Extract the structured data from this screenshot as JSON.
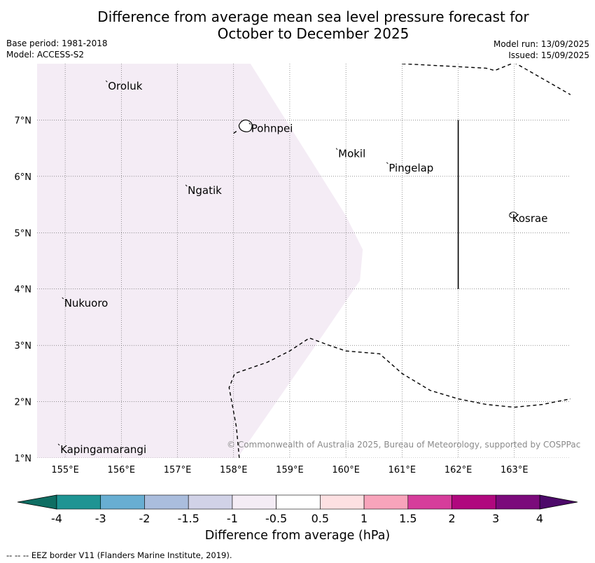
{
  "title_line1": "Difference from average mean sea level pressure forecast for",
  "title_line2": "October to December 2025",
  "base_period": "Base period: 1981-2018",
  "model": "Model: ACCESS-S2",
  "model_run": "Model run: 13/09/2025",
  "issued": "Issued: 15/09/2025",
  "copyright": "© Commonwealth of Australia 2025, Bureau of Meteorology, supported by COSPPac",
  "map": {
    "lon_range": [
      154.5,
      164.0
    ],
    "lat_range": [
      1.0,
      8.0
    ],
    "lon_ticks": [
      "155°E",
      "156°E",
      "157°E",
      "158°E",
      "159°E",
      "160°E",
      "161°E",
      "162°E",
      "163°E"
    ],
    "lat_ticks": [
      "1°N",
      "2°N",
      "3°N",
      "4°N",
      "5°N",
      "6°N",
      "7°N"
    ],
    "gridlines": true,
    "anomaly_region_color": "#f4ecf5",
    "anomaly_region_lonlat": [
      [
        154.5,
        8.0
      ],
      [
        158.3,
        8.0
      ],
      [
        160.0,
        5.3
      ],
      [
        160.3,
        4.7
      ],
      [
        160.25,
        4.15
      ],
      [
        159.6,
        3.2
      ],
      [
        158.0,
        0.9
      ],
      [
        154.5,
        0.9
      ]
    ],
    "places": [
      {
        "name": "Oroluk",
        "lon": 155.75,
        "lat": 7.6
      },
      {
        "name": "Pohnpei",
        "lon": 158.3,
        "lat": 6.85
      },
      {
        "name": "Mokil",
        "lon": 159.85,
        "lat": 6.4
      },
      {
        "name": "Pingelap",
        "lon": 160.75,
        "lat": 6.15
      },
      {
        "name": "Ngatik",
        "lon": 157.17,
        "lat": 5.75
      },
      {
        "name": "Kosrae",
        "lon": 162.95,
        "lat": 5.25
      },
      {
        "name": "Nukuoro",
        "lon": 154.97,
        "lat": 3.75
      },
      {
        "name": "Kapingamarangi",
        "lon": 154.9,
        "lat": 1.15
      }
    ],
    "eez_borders": [
      {
        "style": "dashed",
        "points": [
          [
            161.0,
            8.0
          ],
          [
            162.5,
            7.92
          ],
          [
            162.65,
            7.88
          ],
          [
            163.0,
            8.02
          ],
          [
            163.3,
            7.85
          ],
          [
            164.0,
            7.45
          ]
        ]
      },
      {
        "style": "dashed",
        "points": [
          [
            158.05,
            6.8
          ],
          [
            157.98,
            6.75
          ]
        ]
      },
      {
        "style": "dashed",
        "points": [
          [
            158.1,
            1.0
          ],
          [
            158.05,
            1.55
          ],
          [
            157.92,
            2.25
          ],
          [
            158.02,
            2.5
          ],
          [
            158.6,
            2.7
          ],
          [
            159.0,
            2.9
          ],
          [
            159.35,
            3.13
          ],
          [
            159.7,
            3.0
          ],
          [
            160.0,
            2.9
          ],
          [
            160.6,
            2.85
          ],
          [
            161.0,
            2.5
          ],
          [
            161.5,
            2.2
          ],
          [
            162.0,
            2.05
          ],
          [
            162.5,
            1.95
          ],
          [
            163.0,
            1.9
          ],
          [
            163.5,
            1.95
          ],
          [
            164.0,
            2.05
          ]
        ]
      },
      {
        "style": "solid",
        "points": [
          [
            162.0,
            7.0
          ],
          [
            162.0,
            4.0
          ]
        ]
      }
    ]
  },
  "colorbar": {
    "title": "Difference from average (hPa)",
    "labels": [
      "-4",
      "-3",
      "-2",
      "-1.5",
      "-1",
      "-0.5",
      "0.5",
      "1",
      "1.5",
      "2",
      "3",
      "4"
    ],
    "colors": [
      "#1e9493",
      "#68aed2",
      "#aabddd",
      "#d1d2e7",
      "#f4ecf5",
      "#ffffff",
      "#fde0e2",
      "#f8a4bb",
      "#d63d9b",
      "#b0087e",
      "#7b0a7b"
    ],
    "extend_low_color": "#0f6e63",
    "extend_high_color": "#4d0a6a"
  },
  "eez_note": "-- -- -- EEZ border V11 (Flanders Marine Institute, 2019)."
}
